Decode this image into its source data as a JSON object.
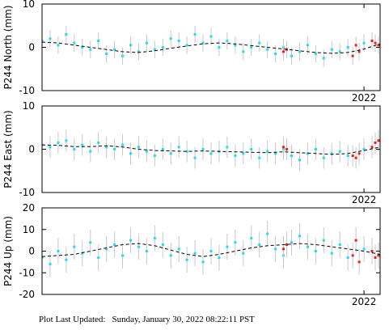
{
  "chart_data": [
    {
      "type": "scatter",
      "ylabel": "P244 North (mm)",
      "xlim": [
        2020.0,
        2022.1
      ],
      "xticks": [
        2022
      ],
      "ylim": [
        -10,
        10
      ],
      "yticks": [
        10,
        0,
        -10
      ],
      "series": [
        {
          "kind": "points",
          "color": "#22ddee",
          "error": 2,
          "x": [
            2020.0,
            2020.05,
            2020.1,
            2020.15,
            2020.2,
            2020.25,
            2020.3,
            2020.35,
            2020.4,
            2020.45,
            2020.5,
            2020.55,
            2020.6,
            2020.65,
            2020.7,
            2020.75,
            2020.8,
            2020.85,
            2020.9,
            2020.95,
            2021.0,
            2021.05,
            2021.1,
            2021.15,
            2021.2,
            2021.25,
            2021.3,
            2021.35,
            2021.4,
            2021.45,
            2021.5,
            2021.55,
            2021.6,
            2021.65,
            2021.7,
            2021.75,
            2021.8,
            2021.85,
            2021.9,
            2022.0
          ],
          "values": [
            1.5,
            2.0,
            0.5,
            3.0,
            1.0,
            0.0,
            -0.5,
            1.5,
            -1.5,
            -0.5,
            -2.0,
            0.5,
            -1.0,
            1.0,
            -0.5,
            0.0,
            2.0,
            1.5,
            0.5,
            3.0,
            1.0,
            2.5,
            0.0,
            1.5,
            0.5,
            -1.0,
            0.0,
            1.0,
            -0.5,
            -1.5,
            0.0,
            -2.0,
            -1.0,
            0.5,
            -1.5,
            -2.5,
            -0.5,
            -1.0,
            0.0,
            1.0
          ]
        },
        {
          "kind": "points",
          "color": "#e82020",
          "error": 2,
          "x": [
            2021.5,
            2021.52,
            2021.93,
            2021.95,
            2021.97,
            2022.05,
            2022.07,
            2022.09
          ],
          "values": [
            -1,
            -0.5,
            -2,
            0.5,
            -1,
            1.5,
            1.0,
            0.5
          ]
        },
        {
          "kind": "model",
          "color": "#000000",
          "x": [
            2020.0,
            2020.1,
            2020.2,
            2020.3,
            2020.4,
            2020.5,
            2020.6,
            2020.7,
            2020.8,
            2020.9,
            2021.0,
            2021.1,
            2021.2,
            2021.3,
            2021.4,
            2021.5,
            2021.6,
            2021.7,
            2021.8,
            2021.9,
            2022.0,
            2022.1
          ],
          "values": [
            1.2,
            1.0,
            0.5,
            0,
            -0.5,
            -1.0,
            -1.2,
            -0.8,
            -0.2,
            0.3,
            0.8,
            1.0,
            0.8,
            0.4,
            0,
            -0.4,
            -0.8,
            -1.2,
            -1.4,
            -1.2,
            -0.4,
            0.8
          ]
        }
      ]
    },
    {
      "type": "scatter",
      "ylabel": "P244 East (mm)",
      "xlim": [
        2020.0,
        2022.1
      ],
      "xticks": [
        2022
      ],
      "ylim": [
        -10,
        10
      ],
      "yticks": [
        10,
        0,
        -10
      ],
      "series": [
        {
          "kind": "points",
          "color": "#22ddee",
          "error": 2.5,
          "x": [
            2020.0,
            2020.05,
            2020.1,
            2020.15,
            2020.2,
            2020.25,
            2020.3,
            2020.35,
            2020.4,
            2020.45,
            2020.5,
            2020.55,
            2020.6,
            2020.65,
            2020.7,
            2020.75,
            2020.8,
            2020.85,
            2020.9,
            2020.95,
            2021.0,
            2021.05,
            2021.1,
            2021.15,
            2021.2,
            2021.25,
            2021.3,
            2021.35,
            2021.4,
            2021.45,
            2021.5,
            2021.55,
            2021.6,
            2021.65,
            2021.7,
            2021.75,
            2021.8,
            2021.85,
            2021.9,
            2022.0
          ],
          "values": [
            1.0,
            0.5,
            1.5,
            2.0,
            0.0,
            1.0,
            -0.5,
            1.5,
            0.5,
            0.0,
            1.0,
            -1.0,
            0.5,
            -0.5,
            -1.5,
            0.0,
            -1.0,
            0.5,
            -0.5,
            -2.0,
            0.0,
            -1.0,
            -0.5,
            0.5,
            -1.5,
            -1.0,
            0.0,
            -2.0,
            -0.5,
            -1.0,
            0.0,
            -1.5,
            -2.5,
            -1.0,
            0.0,
            -2.0,
            -1.0,
            -0.5,
            -1.5,
            0.0
          ]
        },
        {
          "kind": "points",
          "color": "#e82020",
          "error": 2.5,
          "x": [
            2021.5,
            2021.52,
            2021.93,
            2021.95,
            2021.97,
            2022.05,
            2022.07,
            2022.09
          ],
          "values": [
            0.5,
            0.0,
            -1.5,
            -2.0,
            -1.0,
            0.5,
            1.5,
            2.0
          ]
        },
        {
          "kind": "model",
          "color": "#000000",
          "x": [
            2020.0,
            2020.1,
            2020.2,
            2020.3,
            2020.4,
            2020.5,
            2020.6,
            2020.7,
            2020.8,
            2020.9,
            2021.0,
            2021.1,
            2021.2,
            2021.3,
            2021.4,
            2021.5,
            2021.6,
            2021.7,
            2021.8,
            2021.9,
            2022.0,
            2022.1
          ],
          "values": [
            1.0,
            0.9,
            0.6,
            0.6,
            0.8,
            0.5,
            0,
            -0.3,
            -0.4,
            -0.5,
            -0.4,
            -0.5,
            -0.6,
            -0.7,
            -0.8,
            -0.6,
            -0.8,
            -1.0,
            -1.2,
            -1.0,
            -0.3,
            0.5
          ]
        }
      ]
    },
    {
      "type": "scatter",
      "ylabel": "P244 Up (mm)",
      "xlim": [
        2020.0,
        2022.1
      ],
      "xticks": [
        2022
      ],
      "ylim": [
        -20,
        20
      ],
      "yticks": [
        20,
        10,
        0,
        -10,
        -20
      ],
      "series": [
        {
          "kind": "points",
          "color": "#22ddee",
          "error": 6,
          "x": [
            2020.0,
            2020.05,
            2020.1,
            2020.15,
            2020.2,
            2020.25,
            2020.3,
            2020.35,
            2020.4,
            2020.45,
            2020.5,
            2020.55,
            2020.6,
            2020.65,
            2020.7,
            2020.75,
            2020.8,
            2020.85,
            2020.9,
            2020.95,
            2021.0,
            2021.05,
            2021.1,
            2021.15,
            2021.2,
            2021.25,
            2021.3,
            2021.35,
            2021.4,
            2021.45,
            2021.5,
            2021.55,
            2021.6,
            2021.65,
            2021.7,
            2021.75,
            2021.8,
            2021.85,
            2021.9,
            2022.0
          ],
          "values": [
            -3,
            -6,
            0,
            -4,
            2,
            -1,
            4,
            -3,
            1,
            3,
            -2,
            5,
            2,
            0,
            6,
            3,
            -2,
            1,
            -4,
            -1,
            -5,
            0,
            -3,
            2,
            4,
            -1,
            6,
            3,
            8,
            1,
            -2,
            4,
            7,
            2,
            0,
            5,
            -1,
            3,
            -3,
            1
          ]
        },
        {
          "kind": "points",
          "color": "#e82020",
          "error": 6,
          "x": [
            2021.5,
            2021.52,
            2021.93,
            2021.95,
            2021.97,
            2022.05,
            2022.07,
            2022.09
          ],
          "values": [
            1,
            3,
            -2,
            5,
            -5,
            0,
            -3,
            -2
          ]
        },
        {
          "kind": "model",
          "color": "#000000",
          "x": [
            2020.0,
            2020.1,
            2020.2,
            2020.3,
            2020.4,
            2020.5,
            2020.6,
            2020.7,
            2020.8,
            2020.9,
            2021.0,
            2021.1,
            2021.2,
            2021.3,
            2021.4,
            2021.5,
            2021.6,
            2021.7,
            2021.8,
            2021.9,
            2022.0,
            2022.1
          ],
          "values": [
            -2.5,
            -2,
            -1.5,
            0,
            1.5,
            3,
            3.5,
            2.5,
            0.5,
            -1.5,
            -2.5,
            -1.5,
            0,
            1.5,
            2.5,
            3,
            3.5,
            3,
            2,
            1,
            0,
            -1.5
          ]
        }
      ]
    }
  ],
  "footer": {
    "label": "Plot Last Updated:",
    "text": "Sunday, January 30, 2022 08:22:11 PST"
  }
}
